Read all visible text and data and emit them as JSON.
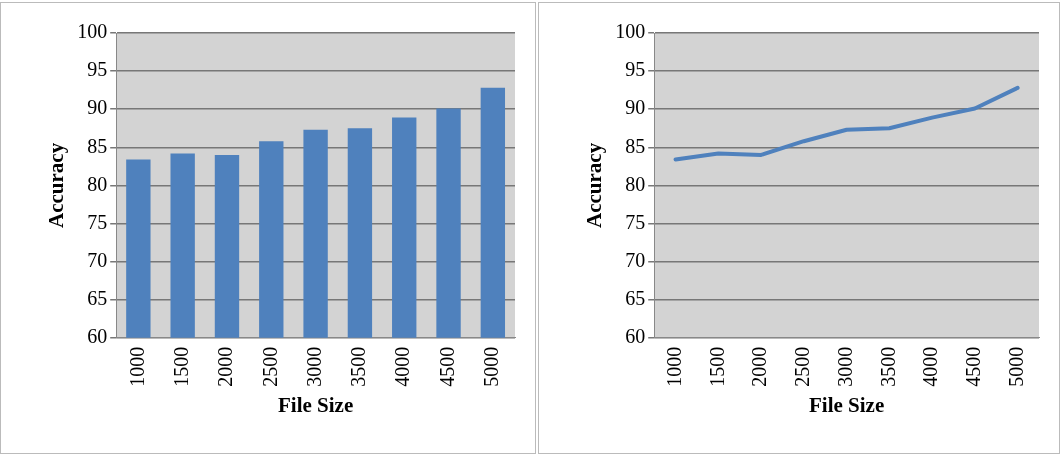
{
  "chart_data": [
    {
      "type": "bar",
      "categories": [
        "1000",
        "1500",
        "2000",
        "2500",
        "3000",
        "3500",
        "4000",
        "4500",
        "5000"
      ],
      "values": [
        83.4,
        84.2,
        84.0,
        85.8,
        87.3,
        87.5,
        88.9,
        90.1,
        92.8
      ],
      "color": "#4f81bd",
      "xlabel": "File Size",
      "ylabel": "Accuracy",
      "ylim": [
        60,
        100
      ],
      "yticks": [
        60,
        65,
        70,
        75,
        80,
        85,
        90,
        95,
        100
      ],
      "grid": "y"
    },
    {
      "type": "line",
      "categories": [
        "1000",
        "1500",
        "2000",
        "2500",
        "3000",
        "3500",
        "4000",
        "4500",
        "5000"
      ],
      "values": [
        83.4,
        84.2,
        84.0,
        85.8,
        87.3,
        87.5,
        88.9,
        90.1,
        92.8
      ],
      "color": "#4f81bd",
      "xlabel": "File Size",
      "ylabel": "Accuracy",
      "ylim": [
        60,
        100
      ],
      "yticks": [
        60,
        65,
        70,
        75,
        80,
        85,
        90,
        95,
        100
      ],
      "grid": "y",
      "marker": "none"
    }
  ]
}
